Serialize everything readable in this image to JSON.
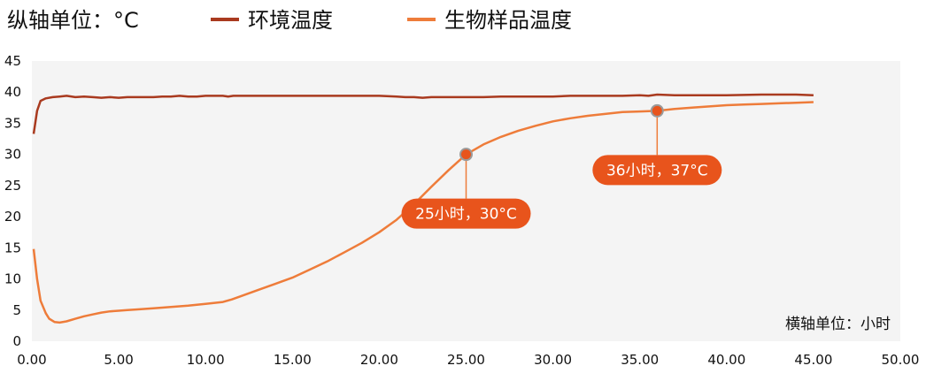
{
  "chart_data": {
    "type": "line",
    "y_unit_label": "纵轴单位：°C",
    "x_unit_label": "横轴单位：小时",
    "xlim": [
      0,
      50
    ],
    "ylim": [
      0,
      45
    ],
    "x_ticks": [
      "0.00",
      "5.00",
      "10.00",
      "15.00",
      "20.00",
      "25.00",
      "30.00",
      "35.00",
      "40.00",
      "45.00",
      "50.00"
    ],
    "y_ticks": [
      "0",
      "5",
      "10",
      "15",
      "20",
      "25",
      "30",
      "35",
      "40",
      "45"
    ],
    "grid": false,
    "legend_position": "top",
    "series": [
      {
        "name": "环境温度",
        "color": "#a93a1f",
        "points": [
          [
            0.1,
            33.3
          ],
          [
            0.3,
            37.0
          ],
          [
            0.5,
            38.6
          ],
          [
            0.8,
            39.0
          ],
          [
            1.2,
            39.2
          ],
          [
            1.6,
            39.3
          ],
          [
            2.0,
            39.4
          ],
          [
            2.5,
            39.2
          ],
          [
            3.0,
            39.3
          ],
          [
            3.5,
            39.2
          ],
          [
            4.0,
            39.1
          ],
          [
            4.5,
            39.2
          ],
          [
            5.0,
            39.1
          ],
          [
            5.5,
            39.2
          ],
          [
            6.0,
            39.2
          ],
          [
            6.5,
            39.2
          ],
          [
            7.0,
            39.2
          ],
          [
            7.5,
            39.3
          ],
          [
            8.0,
            39.3
          ],
          [
            8.5,
            39.4
          ],
          [
            9.0,
            39.3
          ],
          [
            9.5,
            39.3
          ],
          [
            10.0,
            39.4
          ],
          [
            10.5,
            39.4
          ],
          [
            11.0,
            39.4
          ],
          [
            11.3,
            39.3
          ],
          [
            11.6,
            39.4
          ],
          [
            12.0,
            39.4
          ],
          [
            14.0,
            39.4
          ],
          [
            16.0,
            39.4
          ],
          [
            18.0,
            39.4
          ],
          [
            20.0,
            39.4
          ],
          [
            21.0,
            39.3
          ],
          [
            21.5,
            39.2
          ],
          [
            22.0,
            39.2
          ],
          [
            22.5,
            39.1
          ],
          [
            23.0,
            39.2
          ],
          [
            24.0,
            39.2
          ],
          [
            25.0,
            39.2
          ],
          [
            25.5,
            39.2
          ],
          [
            26.0,
            39.2
          ],
          [
            27.0,
            39.3
          ],
          [
            28.0,
            39.3
          ],
          [
            29.0,
            39.3
          ],
          [
            30.0,
            39.3
          ],
          [
            31.0,
            39.4
          ],
          [
            32.0,
            39.4
          ],
          [
            33.0,
            39.4
          ],
          [
            34.0,
            39.4
          ],
          [
            35.0,
            39.5
          ],
          [
            35.5,
            39.4
          ],
          [
            36.0,
            39.6
          ],
          [
            37.0,
            39.5
          ],
          [
            38.0,
            39.5
          ],
          [
            40.0,
            39.5
          ],
          [
            42.0,
            39.6
          ],
          [
            44.0,
            39.6
          ],
          [
            45.0,
            39.5
          ]
        ]
      },
      {
        "name": "生物样品温度",
        "color": "#ee7c3a",
        "points": [
          [
            0.1,
            14.8
          ],
          [
            0.3,
            10.0
          ],
          [
            0.5,
            6.5
          ],
          [
            0.8,
            4.5
          ],
          [
            1.0,
            3.6
          ],
          [
            1.3,
            3.1
          ],
          [
            1.6,
            3.0
          ],
          [
            2.0,
            3.2
          ],
          [
            2.5,
            3.6
          ],
          [
            3.0,
            4.0
          ],
          [
            3.5,
            4.3
          ],
          [
            4.0,
            4.6
          ],
          [
            4.5,
            4.8
          ],
          [
            5.0,
            4.9
          ],
          [
            5.5,
            5.0
          ],
          [
            6.0,
            5.1
          ],
          [
            7.0,
            5.3
          ],
          [
            8.0,
            5.5
          ],
          [
            9.0,
            5.7
          ],
          [
            10.0,
            6.0
          ],
          [
            11.0,
            6.3
          ],
          [
            11.5,
            6.7
          ],
          [
            12.0,
            7.2
          ],
          [
            13.0,
            8.2
          ],
          [
            14.0,
            9.2
          ],
          [
            15.0,
            10.2
          ],
          [
            16.0,
            11.5
          ],
          [
            17.0,
            12.8
          ],
          [
            18.0,
            14.3
          ],
          [
            19.0,
            15.8
          ],
          [
            20.0,
            17.5
          ],
          [
            21.0,
            19.5
          ],
          [
            22.0,
            22.0
          ],
          [
            23.0,
            24.8
          ],
          [
            24.0,
            27.5
          ],
          [
            25.0,
            30.0
          ],
          [
            26.0,
            31.6
          ],
          [
            27.0,
            32.8
          ],
          [
            28.0,
            33.8
          ],
          [
            29.0,
            34.6
          ],
          [
            30.0,
            35.3
          ],
          [
            31.0,
            35.8
          ],
          [
            32.0,
            36.2
          ],
          [
            33.0,
            36.5
          ],
          [
            34.0,
            36.8
          ],
          [
            35.0,
            36.9
          ],
          [
            36.0,
            37.0
          ],
          [
            37.0,
            37.3
          ],
          [
            38.0,
            37.5
          ],
          [
            39.0,
            37.7
          ],
          [
            40.0,
            37.9
          ],
          [
            41.0,
            38.0
          ],
          [
            42.0,
            38.1
          ],
          [
            43.0,
            38.2
          ],
          [
            44.0,
            38.3
          ],
          [
            45.0,
            38.4
          ]
        ]
      }
    ],
    "annotations": [
      {
        "x": 25,
        "y": 30,
        "text": "25小时，30°C"
      },
      {
        "x": 36,
        "y": 37,
        "text": "36小时，37°C"
      }
    ]
  },
  "colors": {
    "plot_background": "#f4f4f4",
    "callout": "#e8541c"
  }
}
